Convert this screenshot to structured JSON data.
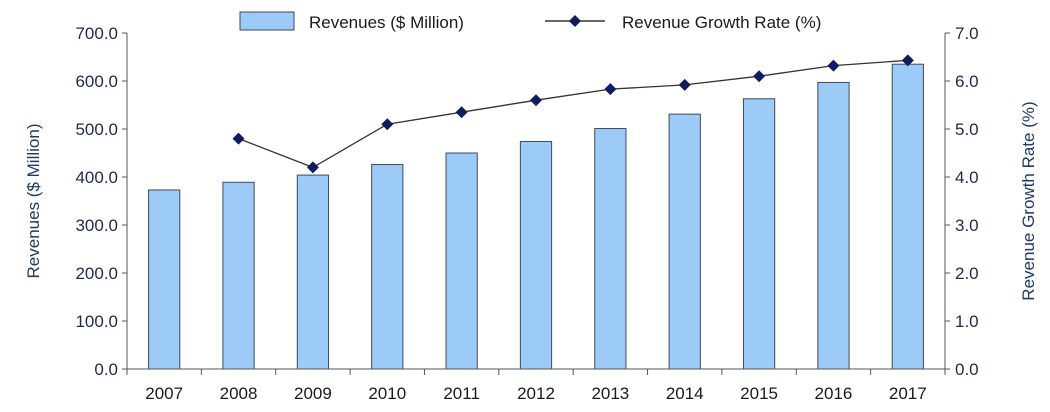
{
  "chart_data": {
    "type": "bar",
    "categories": [
      "2007",
      "2008",
      "2009",
      "2010",
      "2011",
      "2012",
      "2013",
      "2014",
      "2015",
      "2016",
      "2017"
    ],
    "series": [
      {
        "name": "Revenues ($ Million)",
        "type": "bar",
        "axis": "left",
        "values": [
          373,
          389,
          404,
          426,
          450,
          474,
          501,
          531,
          563,
          597,
          635
        ]
      },
      {
        "name": "Revenue Growth Rate (%)",
        "type": "line",
        "axis": "right",
        "values": [
          null,
          4.8,
          4.2,
          5.1,
          5.35,
          5.6,
          5.83,
          5.92,
          6.1,
          6.32,
          6.43
        ]
      }
    ],
    "ylabel": "Revenues ($ Million)",
    "y2label": "Revenue Growth Rate (%)",
    "ylim": [
      0,
      700
    ],
    "y2lim": [
      0,
      7
    ],
    "yticks": [
      "0.0",
      "100.0",
      "200.0",
      "300.0",
      "400.0",
      "500.0",
      "600.0",
      "700.0"
    ],
    "y2ticks": [
      "0.0",
      "1.0",
      "2.0",
      "3.0",
      "4.0",
      "5.0",
      "6.0",
      "7.0"
    ],
    "legend_position": "top",
    "grid": false,
    "colors": {
      "bar_fill": "#9dcbf7",
      "bar_stroke": "#3f4a5c",
      "line": "#333333",
      "marker": "#101c60",
      "axis_text": "#1f3a66"
    }
  }
}
